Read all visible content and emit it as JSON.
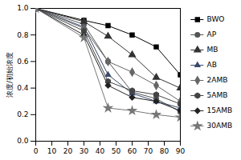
{
  "chart_data": {
    "type": "line",
    "y_label": "浓度/初始浓度",
    "x": [
      0,
      30,
      45,
      60,
      75,
      90
    ],
    "xlim": [
      0,
      90
    ],
    "xticks": [
      0,
      10,
      20,
      30,
      40,
      50,
      60,
      70,
      80,
      90
    ],
    "ylim": [
      0,
      1.0
    ],
    "yticks": [
      {
        "value": 0,
        "label": "0.0"
      },
      {
        "value": 0.2,
        "label": "0.2"
      },
      {
        "value": 0.4,
        "label": "0.4"
      },
      {
        "value": 0.6,
        "label": "0.6"
      },
      {
        "value": 0.8,
        "label": "0.8"
      },
      {
        "value": 1.0,
        "label": "1.0"
      }
    ],
    "grid": false,
    "legend": "right",
    "series": [
      {
        "name": "BWO",
        "color": "#000000",
        "marker": "square",
        "values": [
          1.0,
          0.91,
          0.87,
          0.8,
          0.71,
          0.5
        ]
      },
      {
        "name": "AP",
        "color": "#555555",
        "marker": "circle",
        "values": [
          1.0,
          0.88,
          0.6,
          0.37,
          0.32,
          0.22
        ]
      },
      {
        "name": "MB",
        "color": "#333333",
        "marker": "triangle",
        "values": [
          1.0,
          0.9,
          0.79,
          0.65,
          0.48,
          0.4
        ]
      },
      {
        "name": "AB",
        "color": "#3a4a6b",
        "marker": "triangle2",
        "values": [
          1.0,
          0.86,
          0.5,
          0.36,
          0.3,
          0.25
        ]
      },
      {
        "name": "2AMB",
        "color": "#666666",
        "marker": "diamond",
        "values": [
          1.0,
          0.85,
          0.6,
          0.52,
          0.42,
          0.3
        ]
      },
      {
        "name": "5AMB",
        "color": "#444444",
        "marker": "hexagon",
        "values": [
          1.0,
          0.83,
          0.45,
          0.38,
          0.35,
          0.28
        ]
      },
      {
        "name": "15AMB",
        "color": "#222222",
        "marker": "diamond2",
        "values": [
          1.0,
          0.8,
          0.42,
          0.33,
          0.3,
          0.23
        ]
      },
      {
        "name": "30AMB",
        "color": "#777777",
        "marker": "star",
        "values": [
          1.0,
          0.78,
          0.25,
          0.23,
          0.2,
          0.18
        ]
      }
    ]
  }
}
